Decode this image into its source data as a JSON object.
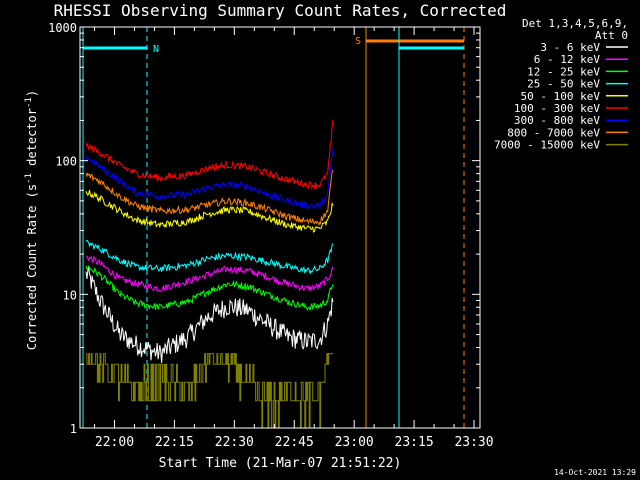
{
  "chart_data": {
    "type": "line",
    "title": "RHESSI Observing Summary Count Rates, Corrected",
    "xlabel": "Start Time (21-Mar-07 21:51:22)",
    "ylabel": "Corrected Count Rate (s",
    "ylabel_sup1": "-1",
    "ylabel_mid": " detector",
    "ylabel_sup2": "-1",
    "ylabel_end": ")",
    "y_scale": "log",
    "ylim": [
      1,
      1000
    ],
    "xlim": [
      "21:51:22",
      "23:31:30"
    ],
    "xticks": [
      "22:00",
      "22:15",
      "22:30",
      "22:45",
      "23:00",
      "23:15",
      "23:30"
    ],
    "yticks": [
      "1",
      "10",
      "100",
      "1000"
    ],
    "timestamp": "14-Oct-2021 13:29",
    "legend": {
      "header1": "Det 1,3,4,5,6,9,",
      "header2": "Att 0",
      "placement": "right"
    },
    "series": [
      {
        "name": "3 - 6 keV",
        "color": "#ffffff",
        "values": [
          [
            0,
            14
          ],
          [
            3,
            9
          ],
          [
            8,
            5
          ],
          [
            12,
            4.2
          ],
          [
            18,
            3.6
          ],
          [
            25,
            4.8
          ],
          [
            30,
            6.8
          ],
          [
            35,
            8.2
          ],
          [
            40,
            7.6
          ],
          [
            45,
            6
          ],
          [
            50,
            4.8
          ],
          [
            55,
            4.4
          ],
          [
            58,
            4.6
          ],
          [
            60,
            6
          ],
          [
            61.5,
            9.5
          ]
        ]
      },
      {
        "name": "6 - 12 keV",
        "color": "#ff00ff",
        "values": [
          [
            0,
            19
          ],
          [
            3,
            17
          ],
          [
            8,
            13
          ],
          [
            12,
            12
          ],
          [
            18,
            11
          ],
          [
            25,
            12.5
          ],
          [
            30,
            14
          ],
          [
            35,
            15.5
          ],
          [
            40,
            15
          ],
          [
            45,
            13.5
          ],
          [
            50,
            12
          ],
          [
            55,
            11
          ],
          [
            58,
            11.5
          ],
          [
            60,
            13
          ],
          [
            61.5,
            16
          ]
        ]
      },
      {
        "name": "12 - 25 keV",
        "color": "#00ff00",
        "values": [
          [
            0,
            16
          ],
          [
            3,
            14
          ],
          [
            8,
            10
          ],
          [
            12,
            8.6
          ],
          [
            18,
            8
          ],
          [
            25,
            8.8
          ],
          [
            30,
            10.5
          ],
          [
            35,
            12
          ],
          [
            40,
            11.5
          ],
          [
            45,
            10
          ],
          [
            50,
            8.8
          ],
          [
            55,
            8
          ],
          [
            58,
            8.2
          ],
          [
            60,
            9
          ],
          [
            61.5,
            13
          ]
        ]
      },
      {
        "name": "25 - 50 keV",
        "color": "#00ffff",
        "values": [
          [
            0,
            24
          ],
          [
            3,
            22
          ],
          [
            8,
            18
          ],
          [
            12,
            16
          ],
          [
            18,
            15.5
          ],
          [
            25,
            16.5
          ],
          [
            30,
            18.5
          ],
          [
            35,
            19.5
          ],
          [
            40,
            19
          ],
          [
            45,
            17.5
          ],
          [
            50,
            16
          ],
          [
            55,
            15
          ],
          [
            58,
            15.5
          ],
          [
            60,
            18
          ],
          [
            61.5,
            24
          ]
        ]
      },
      {
        "name": "50 - 100 keV",
        "color": "#ffff00",
        "values": [
          [
            0,
            58
          ],
          [
            3,
            52
          ],
          [
            8,
            42
          ],
          [
            12,
            36
          ],
          [
            18,
            33
          ],
          [
            25,
            35
          ],
          [
            30,
            40
          ],
          [
            35,
            43
          ],
          [
            40,
            42
          ],
          [
            45,
            37
          ],
          [
            50,
            33
          ],
          [
            55,
            31
          ],
          [
            58,
            31
          ],
          [
            60,
            35
          ],
          [
            61.5,
            50
          ]
        ]
      },
      {
        "name": "100 - 300 keV",
        "color": "#ff0000",
        "values": [
          [
            0,
            128
          ],
          [
            3,
            115
          ],
          [
            8,
            92
          ],
          [
            12,
            80
          ],
          [
            18,
            74
          ],
          [
            25,
            78
          ],
          [
            30,
            88
          ],
          [
            35,
            93
          ],
          [
            40,
            90
          ],
          [
            45,
            80
          ],
          [
            50,
            72
          ],
          [
            55,
            66
          ],
          [
            58,
            66
          ],
          [
            60,
            80
          ],
          [
            61.5,
            220
          ]
        ]
      },
      {
        "name": "300 - 800 keV",
        "color": "#0000ff",
        "values": [
          [
            0,
            104
          ],
          [
            3,
            90
          ],
          [
            8,
            70
          ],
          [
            12,
            58
          ],
          [
            18,
            54
          ],
          [
            25,
            56
          ],
          [
            30,
            63
          ],
          [
            35,
            66
          ],
          [
            40,
            64
          ],
          [
            45,
            56
          ],
          [
            50,
            50
          ],
          [
            55,
            46
          ],
          [
            58,
            46
          ],
          [
            60,
            55
          ],
          [
            61.5,
            140
          ]
        ]
      },
      {
        "name": "800 - 7000 keV",
        "color": "#ff8000",
        "values": [
          [
            0,
            78
          ],
          [
            3,
            70
          ],
          [
            8,
            54
          ],
          [
            12,
            46
          ],
          [
            18,
            42
          ],
          [
            25,
            43
          ],
          [
            30,
            47
          ],
          [
            35,
            50
          ],
          [
            40,
            48
          ],
          [
            45,
            43
          ],
          [
            50,
            38
          ],
          [
            55,
            35
          ],
          [
            58,
            35
          ],
          [
            60,
            42
          ],
          [
            61.5,
            100
          ]
        ]
      },
      {
        "name": "7000 - 15000 keV",
        "color": "#808000",
        "values": [
          [
            0,
            3.5
          ],
          [
            3,
            2.5
          ],
          [
            8,
            2
          ],
          [
            12,
            1.6
          ],
          [
            18,
            2
          ],
          [
            25,
            1.5
          ],
          [
            30,
            3
          ],
          [
            35,
            2.8
          ],
          [
            40,
            1.8
          ],
          [
            45,
            1.3
          ],
          [
            50,
            1.6
          ],
          [
            55,
            1.4
          ],
          [
            58,
            1.5
          ],
          [
            60,
            3
          ],
          [
            61.5,
            4
          ]
        ]
      }
    ],
    "flags": [
      {
        "label": "",
        "color": "#00ffff"
      },
      {
        "label": "N",
        "color": "#00ffff"
      },
      {
        "label": "S",
        "color": "#ff8000"
      },
      {
        "label": "",
        "color": "#00ffff"
      },
      {
        "label": "",
        "color": "#ff8000"
      }
    ]
  }
}
